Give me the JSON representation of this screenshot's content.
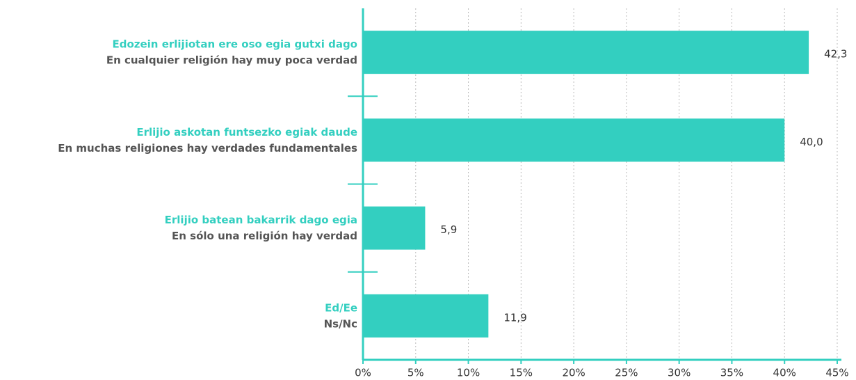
{
  "chart_data": {
    "type": "bar",
    "orientation": "horizontal",
    "categories": [
      "Edozein erlijiotan ere oso egia gutxi dago",
      "Erlijio askotan funtsezko egiak daude",
      "Erlijio batean bakarrik dago egia",
      "Ed/Ee"
    ],
    "category_translations": [
      "En cualquier religión hay muy poca verdad",
      "En muchas religiones hay verdades fundamentales",
      "En sólo una religión hay verdad",
      "Ns/Nc"
    ],
    "values": [
      42.3,
      40.0,
      5.9,
      11.9
    ],
    "value_labels": [
      "42,3",
      "40,0",
      "5,9",
      "11,9"
    ],
    "color": "#33cfc0",
    "xlim": [
      0,
      45
    ],
    "xticks": [
      {
        "value": 0,
        "label": "0%"
      },
      {
        "value": 5,
        "label": "5%"
      },
      {
        "value": 10,
        "label": "10%"
      },
      {
        "value": 15,
        "label": "15%"
      },
      {
        "value": 20,
        "label": "20%"
      },
      {
        "value": 25,
        "label": "25%"
      },
      {
        "value": 30,
        "label": "30%"
      },
      {
        "value": 35,
        "label": "35%"
      },
      {
        "value": 40,
        "label": "40%"
      },
      {
        "value": 45,
        "label": "45%"
      }
    ],
    "grid": true
  }
}
